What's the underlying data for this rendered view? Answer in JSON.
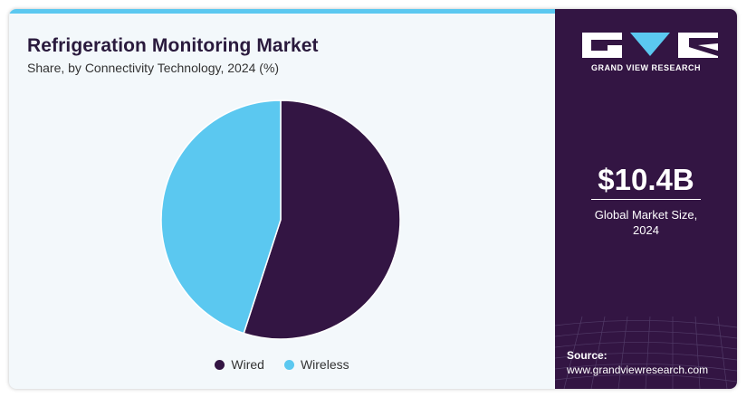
{
  "header": {
    "title": "Refrigeration Monitoring Market",
    "subtitle": "Share, by Connectivity Technology, 2024 (%)"
  },
  "chart_data": {
    "type": "pie",
    "categories": [
      "Wired",
      "Wireless"
    ],
    "values": [
      55,
      45
    ],
    "colors": [
      "#331543",
      "#5bc8f0"
    ],
    "legend_position": "bottom"
  },
  "sidebar": {
    "brand": "GRAND VIEW RESEARCH",
    "market_size": "$10.4B",
    "market_size_label": "Global Market Size, 2024",
    "source_label": "Source:",
    "source_url": "www.grandviewresearch.com",
    "background_color": "#331543",
    "accent_color": "#5bc8f0"
  }
}
